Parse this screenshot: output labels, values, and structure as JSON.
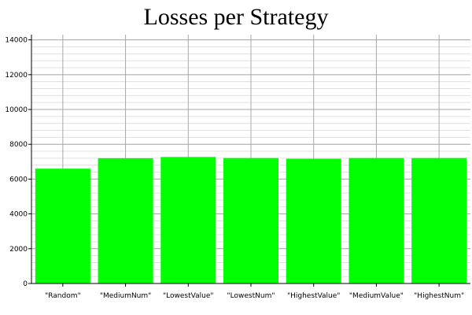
{
  "chart_data": {
    "type": "bar",
    "title": "Losses per Strategy",
    "xlabel": "",
    "ylabel": "",
    "categories": [
      "\"Random\"",
      "\"MediumNum\"",
      "\"LowestValue\"",
      "\"LowestNum\"",
      "\"HighestValue\"",
      "\"MediumValue\"",
      "\"HighestNum\""
    ],
    "values": [
      6600,
      7200,
      7270,
      7210,
      7170,
      7210,
      7210
    ],
    "ylim": [
      0,
      14300
    ],
    "yticks": [
      0,
      2000,
      4000,
      6000,
      8000,
      10000,
      12000,
      14000
    ],
    "grid": true,
    "legend": "none",
    "bar_color": "#00ff00"
  }
}
